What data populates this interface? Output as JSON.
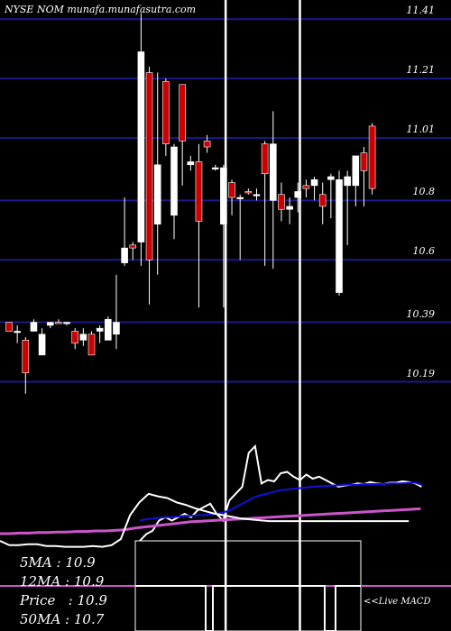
{
  "watermark": "NYSE NOM munafa.munafasutra.com",
  "colors": {
    "background": "#000000",
    "grid": "#1a1a8c",
    "up_candle": "#ffffff",
    "down_candle": "#cc0000",
    "ma_fast": "#ffffff",
    "ma_mid": "#1010dd",
    "ma_slow": "#cc55cc",
    "highlight": "#ffffff"
  },
  "stats": {
    "ma5": "5MA : 10.9",
    "ma12": "12MA : 10.9",
    "price": "Price   : 10.9",
    "ma50": "50MA : 10.7"
  },
  "macd_label": "<<Live MACD",
  "chart_data": {
    "type": "candlestick",
    "yticks": [
      11.41,
      11.21,
      11.01,
      10.8,
      10.6,
      10.39,
      10.19
    ],
    "ylim": [
      10.14,
      11.45
    ],
    "grid": true,
    "candles": [
      {
        "o": 10.39,
        "h": 10.39,
        "l": 10.36,
        "c": 10.36,
        "bull": false
      },
      {
        "o": 10.36,
        "h": 10.38,
        "l": 10.32,
        "c": 10.36,
        "bull": true
      },
      {
        "o": 10.33,
        "h": 10.34,
        "l": 10.15,
        "c": 10.22,
        "bull": false
      },
      {
        "o": 10.36,
        "h": 10.4,
        "l": 10.36,
        "c": 10.39,
        "bull": true
      },
      {
        "o": 10.28,
        "h": 10.37,
        "l": 10.28,
        "c": 10.35,
        "bull": true
      },
      {
        "o": 10.38,
        "h": 10.39,
        "l": 10.37,
        "c": 10.39,
        "bull": true
      },
      {
        "o": 10.39,
        "h": 10.4,
        "l": 10.39,
        "c": 10.39,
        "bull": false
      },
      {
        "o": 10.39,
        "h": 10.39,
        "l": 10.38,
        "c": 10.39,
        "bull": true
      },
      {
        "o": 10.36,
        "h": 10.37,
        "l": 10.3,
        "c": 10.32,
        "bull": false
      },
      {
        "o": 10.35,
        "h": 10.37,
        "l": 10.31,
        "c": 10.33,
        "bull": true
      },
      {
        "o": 10.35,
        "h": 10.36,
        "l": 10.28,
        "c": 10.28,
        "bull": false
      },
      {
        "o": 10.36,
        "h": 10.38,
        "l": 10.32,
        "c": 10.37,
        "bull": true
      },
      {
        "o": 10.33,
        "h": 10.41,
        "l": 10.33,
        "c": 10.4,
        "bull": true
      },
      {
        "o": 10.35,
        "h": 10.55,
        "l": 10.3,
        "c": 10.39,
        "bull": true
      },
      {
        "o": 10.59,
        "h": 10.81,
        "l": 10.58,
        "c": 10.64,
        "bull": true
      },
      {
        "o": 10.65,
        "h": 10.66,
        "l": 10.6,
        "c": 10.64,
        "bull": false
      },
      {
        "o": 10.66,
        "h": 11.43,
        "l": 10.58,
        "c": 11.3,
        "bull": true
      },
      {
        "o": 11.23,
        "h": 11.25,
        "l": 10.45,
        "c": 10.6,
        "bull": false
      },
      {
        "o": 10.92,
        "h": 11.23,
        "l": 10.55,
        "c": 10.72,
        "bull": true
      },
      {
        "o": 11.2,
        "h": 11.21,
        "l": 10.95,
        "c": 10.99,
        "bull": false
      },
      {
        "o": 10.98,
        "h": 10.99,
        "l": 10.67,
        "c": 10.75,
        "bull": true
      },
      {
        "o": 11.19,
        "h": 11.19,
        "l": 10.85,
        "c": 11.0,
        "bull": false
      },
      {
        "o": 10.92,
        "h": 10.95,
        "l": 10.9,
        "c": 10.93,
        "bull": true
      },
      {
        "o": 10.93,
        "h": 10.99,
        "l": 10.44,
        "c": 10.73,
        "bull": false
      },
      {
        "o": 11.0,
        "h": 11.02,
        "l": 10.96,
        "c": 10.98,
        "bull": false
      },
      {
        "o": 10.91,
        "h": 10.92,
        "l": 10.9,
        "c": 10.91,
        "bull": true
      },
      {
        "o": 10.91,
        "h": 10.92,
        "l": 10.44,
        "c": 10.72,
        "bull": true
      },
      {
        "o": 10.86,
        "h": 10.87,
        "l": 10.75,
        "c": 10.81,
        "bull": false
      },
      {
        "o": 10.81,
        "h": 10.82,
        "l": 10.6,
        "c": 10.81,
        "bull": true
      },
      {
        "o": 10.83,
        "h": 10.84,
        "l": 10.82,
        "c": 10.83,
        "bull": false
      },
      {
        "o": 10.82,
        "h": 10.84,
        "l": 10.8,
        "c": 10.82,
        "bull": true
      },
      {
        "o": 10.99,
        "h": 11.0,
        "l": 10.58,
        "c": 10.89,
        "bull": false
      },
      {
        "o": 10.8,
        "h": 11.1,
        "l": 10.57,
        "c": 10.99,
        "bull": true
      },
      {
        "o": 10.82,
        "h": 10.86,
        "l": 10.73,
        "c": 10.77,
        "bull": false
      },
      {
        "o": 10.77,
        "h": 10.81,
        "l": 10.72,
        "c": 10.78,
        "bull": true
      },
      {
        "o": 10.81,
        "h": 10.86,
        "l": 10.76,
        "c": 10.83,
        "bull": true
      },
      {
        "o": 10.85,
        "h": 10.87,
        "l": 10.81,
        "c": 10.84,
        "bull": false
      },
      {
        "o": 10.85,
        "h": 10.88,
        "l": 10.8,
        "c": 10.87,
        "bull": true
      },
      {
        "o": 10.82,
        "h": 10.86,
        "l": 10.72,
        "c": 10.78,
        "bull": false
      },
      {
        "o": 10.88,
        "h": 10.89,
        "l": 10.74,
        "c": 10.87,
        "bull": true
      },
      {
        "o": 10.87,
        "h": 10.9,
        "l": 10.48,
        "c": 10.49,
        "bull": true
      },
      {
        "o": 10.85,
        "h": 10.9,
        "l": 10.65,
        "c": 10.88,
        "bull": true
      },
      {
        "o": 10.85,
        "h": 10.95,
        "l": 10.78,
        "c": 10.95,
        "bull": true
      },
      {
        "o": 10.96,
        "h": 10.98,
        "l": 10.78,
        "c": 10.9,
        "bull": false
      },
      {
        "o": 11.05,
        "h": 11.06,
        "l": 10.82,
        "c": 10.84,
        "bull": false
      }
    ],
    "highlight_lines": [
      41,
      50
    ],
    "ma_series": [
      {
        "name": "5MA",
        "values": [
          -0.4,
          -0.3,
          -0.25,
          -0.1,
          -0.05,
          -0.1,
          -0.05,
          0.0,
          -0.05,
          0.05,
          0.1,
          0.15,
          0.0,
          -0.1,
          0.2,
          0.3,
          0.4,
          0.9,
          1.0,
          0.45,
          0.5,
          0.48,
          0.6,
          0.62,
          0.55,
          0.5,
          0.58,
          0.52,
          0.55,
          0.5,
          0.45,
          0.4,
          0.42,
          0.43,
          0.45,
          0.44,
          0.47,
          0.45,
          0.44,
          0.46,
          0.46,
          0.48,
          0.47,
          0.45,
          0.4
        ]
      },
      {
        "name": "12MA",
        "values": [
          -0.1,
          -0.08,
          -0.07,
          -0.06,
          -0.05,
          -0.05,
          -0.04,
          -0.03,
          -0.03,
          -0.02,
          -0.02,
          -0.01,
          0.0,
          0.02,
          0.05,
          0.1,
          0.15,
          0.2,
          0.25,
          0.28,
          0.3,
          0.33,
          0.35,
          0.36,
          0.37,
          0.38,
          0.39,
          0.4,
          0.41,
          0.41,
          0.42,
          0.42,
          0.43,
          0.43,
          0.43,
          0.44,
          0.44,
          0.44,
          0.44,
          0.45,
          0.45,
          0.45,
          0.46,
          0.46,
          0.43
        ]
      },
      {
        "name": "50MA",
        "values": [
          -0.3,
          -0.3,
          -0.29,
          -0.29,
          -0.28,
          -0.28,
          -0.27,
          -0.27,
          -0.26,
          -0.26,
          -0.25,
          -0.25,
          -0.24,
          -0.23,
          -0.2,
          -0.18,
          -0.16,
          -0.14,
          -0.12,
          -0.1,
          -0.08,
          -0.07,
          -0.06,
          -0.05,
          -0.04,
          -0.03,
          -0.02,
          -0.01,
          0.0,
          0.01,
          0.02,
          0.03,
          0.04,
          0.05,
          0.06,
          0.07,
          0.08,
          0.09,
          0.1,
          0.11,
          0.12,
          0.13,
          0.14,
          0.15,
          0.16
        ]
      },
      {
        "name": "MACD",
        "values": [
          0.0,
          -0.05,
          -0.05,
          -0.04,
          -0.04,
          -0.06,
          -0.06,
          -0.07,
          -0.07,
          -0.07,
          -0.06,
          -0.07,
          -0.05,
          0.02,
          0.3,
          0.45,
          0.55,
          0.52,
          0.5,
          0.45,
          0.42,
          0.38,
          0.35,
          0.32,
          0.3,
          0.28,
          0.26,
          0.25,
          0.24,
          0.23,
          0.23,
          0.23,
          0.23,
          0.23,
          0.23,
          0.23,
          0.23,
          0.23,
          0.23,
          0.23,
          0.23,
          0.23,
          0.23,
          0.23,
          0.23
        ]
      }
    ],
    "macd_histogram_steps": [
      0,
      0,
      0,
      0,
      0,
      0,
      0,
      0,
      0,
      0,
      0,
      0,
      0,
      0,
      0,
      0,
      0,
      0,
      0,
      0,
      0,
      0,
      0,
      0,
      0,
      0,
      1,
      1,
      0,
      0,
      0,
      0,
      0,
      0,
      0,
      0,
      0,
      0,
      0,
      1,
      1,
      0,
      0,
      0,
      0
    ]
  }
}
